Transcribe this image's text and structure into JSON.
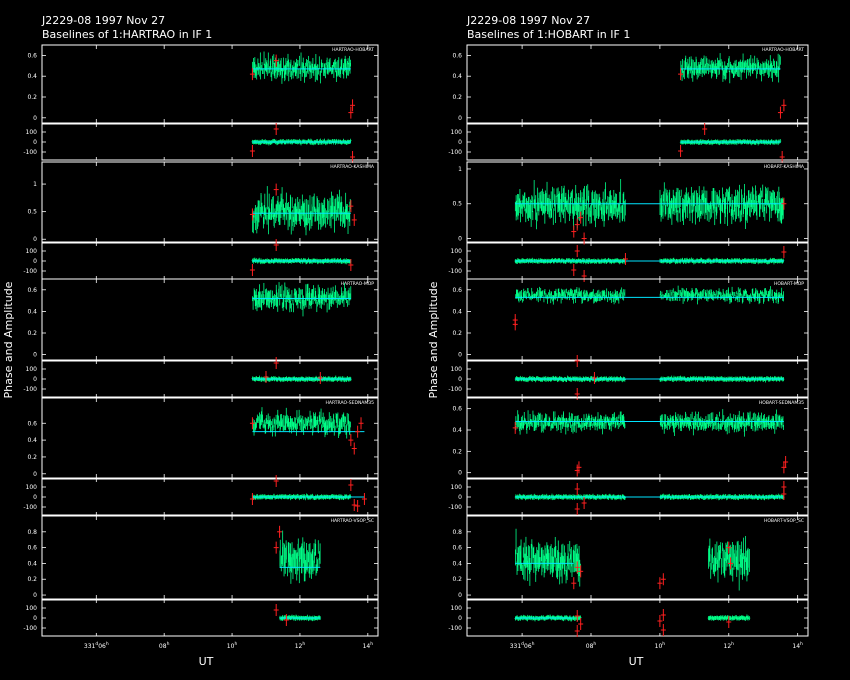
{
  "window": {
    "width": 850,
    "height": 680
  },
  "chart_data": [
    {
      "type": "scatter",
      "title_line1": "J2229-08  1997 Nov 27",
      "title_line2": "Baselines of 1:HARTRAO in IF 1",
      "xlabel": "UT",
      "ylabel": "Phase and Amplitude",
      "x_ticks": [
        {
          "label": "331",
          "sup": "d",
          "mid": "06",
          "sup2": "h",
          "t": 6
        },
        {
          "label": "08",
          "sup": "h",
          "t": 8
        },
        {
          "label": "10",
          "sup": "h",
          "t": 10
        },
        {
          "label": "12",
          "sup": "h",
          "t": 12
        },
        {
          "label": "14",
          "sup": "h",
          "t": 14
        }
      ],
      "xlim": [
        4.4,
        14.3
      ],
      "colors": {
        "points": "#00ff88",
        "model": "#00e5ff",
        "flag": "#ff2020"
      },
      "baselines": [
        {
          "name": "HARTRAO-HOBART",
          "amp_ticks": [
            0,
            0.2,
            0.4,
            0.6
          ],
          "amp_ylim": [
            -0.05,
            0.7
          ],
          "segments": [
            [
              10.6,
              13.5
            ]
          ],
          "amp_level": 0.48,
          "amp_scatter": 0.05,
          "model_amp": 0.47,
          "model_range": [
            10.6,
            13.5
          ],
          "flags_amp": [
            [
              10.6,
              0.42
            ],
            [
              11.3,
              0.55
            ],
            [
              13.5,
              0.05
            ],
            [
              13.55,
              0.12
            ]
          ],
          "flags_phase": [
            [
              10.6,
              -90
            ],
            [
              11.3,
              130
            ],
            [
              13.55,
              -150
            ]
          ]
        },
        {
          "name": "HARTRAO-KASHIMA",
          "amp_ticks": [
            0,
            0.5,
            1
          ],
          "amp_ylim": [
            -0.05,
            1.4
          ],
          "segments": [
            [
              10.6,
              13.5
            ]
          ],
          "amp_level": 0.48,
          "amp_scatter": 0.15,
          "model_amp": 0.47,
          "model_range": [
            10.6,
            13.5
          ],
          "flags_amp": [
            [
              10.6,
              0.45
            ],
            [
              11.3,
              0.9
            ],
            [
              13.5,
              0.6
            ],
            [
              13.6,
              0.35
            ]
          ],
          "flags_phase": [
            [
              10.6,
              -90
            ],
            [
              11.3,
              160
            ],
            [
              13.5,
              -40
            ]
          ]
        },
        {
          "name": "HARTRAO-MOP",
          "amp_ticks": [
            0,
            0.2,
            0.4,
            0.6
          ],
          "amp_ylim": [
            -0.05,
            0.7
          ],
          "segments": [
            [
              10.6,
              13.5
            ]
          ],
          "amp_level": 0.52,
          "amp_scatter": 0.05,
          "model_amp": 0.52,
          "model_range": [
            10.6,
            13.5
          ],
          "flags_amp": [],
          "flags_phase": [
            [
              11.3,
              160
            ],
            [
              11.0,
              20
            ],
            [
              12.6,
              10
            ]
          ]
        },
        {
          "name": "HARTRAO-SEDNAM35",
          "amp_ticks": [
            0,
            0.2,
            0.4,
            0.6
          ],
          "amp_ylim": [
            -0.05,
            0.9
          ],
          "segments": [
            [
              10.6,
              13.5
            ]
          ],
          "amp_level": 0.6,
          "amp_scatter": 0.06,
          "model_amp": 0.5,
          "model_range": [
            10.6,
            13.9
          ],
          "flags_amp": [
            [
              10.6,
              0.6
            ],
            [
              13.5,
              0.4
            ],
            [
              13.6,
              0.3
            ],
            [
              13.7,
              0.5
            ],
            [
              13.8,
              0.6
            ]
          ],
          "flags_phase": [
            [
              10.6,
              -20
            ],
            [
              11.3,
              160
            ],
            [
              13.5,
              120
            ],
            [
              13.6,
              -80
            ],
            [
              13.7,
              -90
            ],
            [
              13.9,
              -20
            ]
          ]
        },
        {
          "name": "HARTRAO-VSOP_SC",
          "amp_ticks": [
            0,
            0.2,
            0.4,
            0.6,
            0.8
          ],
          "amp_ylim": [
            -0.05,
            1.0
          ],
          "segments": [
            [
              11.4,
              12.6
            ]
          ],
          "amp_level": 0.45,
          "amp_scatter": 0.12,
          "model_amp": 0.35,
          "model_range": [
            11.4,
            12.6
          ],
          "flags_amp": [
            [
              11.3,
              0.6
            ],
            [
              11.4,
              0.8
            ]
          ],
          "flags_phase": [
            [
              11.3,
              80
            ],
            [
              11.6,
              -20
            ]
          ]
        }
      ]
    },
    {
      "type": "scatter",
      "title_line1": "J2229-08  1997 Nov 27",
      "title_line2": "Baselines of 1:HOBART in IF 1",
      "xlabel": "UT",
      "ylabel": "Phase and Amplitude",
      "x_ticks": [
        {
          "label": "331",
          "sup": "d",
          "mid": "06",
          "sup2": "h",
          "t": 6
        },
        {
          "label": "08",
          "sup": "h",
          "t": 8
        },
        {
          "label": "10",
          "sup": "h",
          "t": 10
        },
        {
          "label": "12",
          "sup": "h",
          "t": 12
        },
        {
          "label": "14",
          "sup": "h",
          "t": 14
        }
      ],
      "xlim": [
        4.4,
        14.3
      ],
      "colors": {
        "points": "#00ff88",
        "model": "#00e5ff",
        "flag": "#ff2020"
      },
      "baselines": [
        {
          "name": "HARTRAO-HOBART",
          "amp_ticks": [
            0,
            0.2,
            0.4,
            0.6
          ],
          "amp_ylim": [
            -0.05,
            0.7
          ],
          "segments": [
            [
              10.6,
              13.5
            ]
          ],
          "amp_level": 0.48,
          "amp_scatter": 0.05,
          "model_amp": 0.47,
          "model_range": [
            10.6,
            13.5
          ],
          "flags_amp": [
            [
              10.6,
              0.42
            ],
            [
              13.5,
              0.05
            ],
            [
              13.6,
              0.12
            ]
          ],
          "flags_phase": [
            [
              11.3,
              130
            ],
            [
              10.6,
              -90
            ],
            [
              13.55,
              -150
            ]
          ]
        },
        {
          "name": "HOBART-KASHIMA",
          "amp_ticks": [
            0,
            0.5,
            1
          ],
          "amp_ylim": [
            -0.05,
            1.1
          ],
          "segments": [
            [
              5.8,
              9.0
            ],
            [
              10.0,
              13.6
            ]
          ],
          "amp_level": 0.48,
          "amp_scatter": 0.12,
          "model_amp": 0.5,
          "model_range": [
            5.8,
            13.6
          ],
          "flags_amp": [
            [
              7.5,
              0.1
            ],
            [
              7.6,
              0.2
            ],
            [
              7.7,
              0.3
            ],
            [
              7.8,
              0.0
            ],
            [
              13.6,
              0.5
            ]
          ],
          "flags_phase": [
            [
              7.5,
              -90
            ],
            [
              7.6,
              100
            ],
            [
              7.8,
              -150
            ],
            [
              13.6,
              90
            ],
            [
              9.0,
              20
            ]
          ]
        },
        {
          "name": "HOBART-MOP",
          "amp_ticks": [
            0,
            0.2,
            0.4,
            0.6
          ],
          "amp_ylim": [
            -0.05,
            0.7
          ],
          "segments": [
            [
              5.8,
              9.0
            ],
            [
              10.0,
              13.6
            ]
          ],
          "amp_level": 0.55,
          "amp_scatter": 0.03,
          "model_amp": 0.53,
          "model_range": [
            5.8,
            13.6
          ],
          "flags_amp": [
            [
              5.8,
              0.28
            ],
            [
              5.8,
              0.32
            ]
          ],
          "flags_phase": [
            [
              7.6,
              180
            ],
            [
              7.6,
              -150
            ],
            [
              8.1,
              10
            ]
          ]
        },
        {
          "name": "HOBART-SEDNAM35",
          "amp_ticks": [
            0,
            0.2,
            0.4,
            0.6
          ],
          "amp_ylim": [
            -0.05,
            0.7
          ],
          "segments": [
            [
              5.8,
              9.0
            ],
            [
              10.0,
              13.6
            ]
          ],
          "amp_level": 0.47,
          "amp_scatter": 0.04,
          "model_amp": 0.48,
          "model_range": [
            5.8,
            13.6
          ],
          "flags_amp": [
            [
              5.8,
              0.42
            ],
            [
              7.6,
              0.02
            ],
            [
              7.65,
              0.05
            ],
            [
              13.6,
              0.05
            ],
            [
              13.65,
              0.1
            ]
          ],
          "flags_phase": [
            [
              7.6,
              80
            ],
            [
              7.6,
              -120
            ],
            [
              13.6,
              30
            ],
            [
              13.6,
              100
            ],
            [
              7.8,
              -60
            ]
          ]
        },
        {
          "name": "HOBART-VSOP_SC",
          "amp_ticks": [
            0,
            0.2,
            0.4,
            0.6,
            0.8
          ],
          "amp_ylim": [
            -0.05,
            1.0
          ],
          "segments": [
            [
              5.8,
              7.7
            ],
            [
              11.4,
              12.6
            ]
          ],
          "amp_level": 0.45,
          "amp_scatter": 0.12,
          "model_amp": 0.4,
          "model_range": [
            5.8,
            7.5
          ],
          "flags_amp": [
            [
              7.5,
              0.15
            ],
            [
              7.6,
              0.35
            ],
            [
              7.7,
              0.3
            ],
            [
              10.0,
              0.15
            ],
            [
              10.1,
              0.2
            ],
            [
              12.0,
              0.6
            ],
            [
              12.05,
              0.4
            ]
          ],
          "flags_phase": [
            [
              7.6,
              -130
            ],
            [
              7.6,
              20
            ],
            [
              7.7,
              -60
            ],
            [
              10.0,
              -30
            ],
            [
              10.1,
              30
            ],
            [
              10.1,
              -120
            ],
            [
              12.0,
              -40
            ]
          ]
        }
      ]
    }
  ]
}
